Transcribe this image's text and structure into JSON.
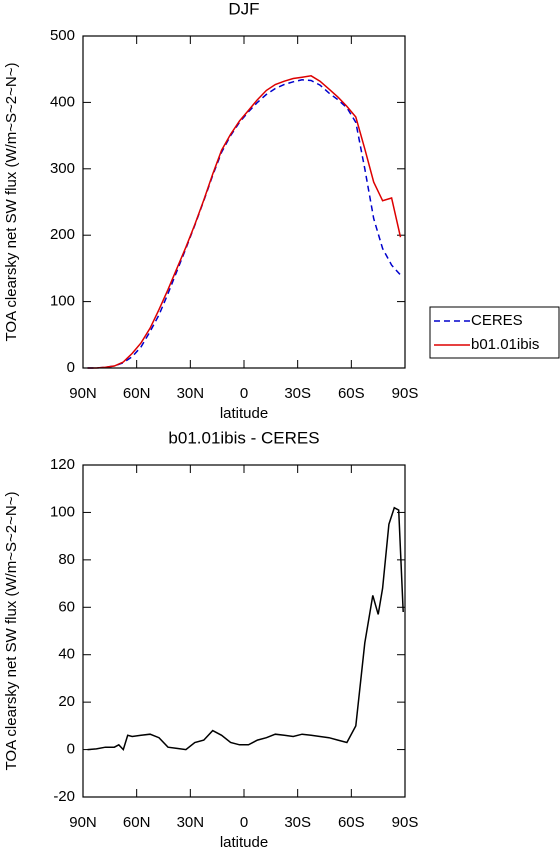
{
  "chart_data": [
    {
      "type": "line",
      "title": "DJF",
      "xlabel": "latitude",
      "ylabel": "TOA clearsky net SW flux (W/m~S~2~N~)",
      "x": [
        87.5,
        82.5,
        77.5,
        72.5,
        67.5,
        62.5,
        57.5,
        52.5,
        47.5,
        42.5,
        37.5,
        32.5,
        27.5,
        22.5,
        17.5,
        12.5,
        7.5,
        2.5,
        -2.5,
        -7.5,
        -12.5,
        -17.5,
        -22.5,
        -27.5,
        -32.5,
        -37.5,
        -42.5,
        -47.5,
        -52.5,
        -57.5,
        -62.5,
        -67.5,
        -72.5,
        -77.5,
        -82.5,
        -87.5
      ],
      "series": [
        {
          "name": "CERES",
          "color": "#0000cc",
          "linestyle": "dashed",
          "values": [
            0,
            0,
            1,
            3,
            8,
            17,
            32,
            55,
            80,
            112,
            146,
            180,
            215,
            252,
            290,
            325,
            350,
            370,
            386,
            400,
            412,
            421,
            427,
            431,
            434,
            433,
            426,
            414,
            404,
            392,
            370,
            300,
            225,
            180,
            155,
            140
          ]
        },
        {
          "name": "b01.01ibis",
          "color": "#dd0000",
          "linestyle": "solid",
          "values": [
            0,
            0,
            1,
            3,
            9,
            22,
            38,
            60,
            88,
            118,
            150,
            182,
            216,
            253,
            292,
            328,
            352,
            372,
            388,
            404,
            418,
            427,
            432,
            436,
            438,
            440,
            432,
            420,
            408,
            394,
            378,
            330,
            280,
            252,
            256,
            197
          ]
        }
      ],
      "xlim": [
        90,
        -90
      ],
      "xticks": [
        {
          "value": 90,
          "label": "90N"
        },
        {
          "value": 60,
          "label": "60N"
        },
        {
          "value": 30,
          "label": "30N"
        },
        0,
        {
          "value": -30,
          "label": "30S"
        },
        {
          "value": -60,
          "label": "60S"
        },
        {
          "value": -90,
          "label": "90S"
        }
      ],
      "ylim": [
        0,
        500
      ],
      "yticks": [
        0,
        100,
        200,
        300,
        400,
        500
      ],
      "legend": "right"
    },
    {
      "type": "line",
      "title": "b01.01ibis - CERES",
      "xlabel": "latitude",
      "ylabel": "TOA clearsky net SW flux (W/m~S~2~N~)",
      "x": [
        87.5,
        82.5,
        77.5,
        72.5,
        70,
        67.5,
        65,
        62.5,
        57.5,
        52.5,
        47.5,
        42.5,
        37.5,
        32.5,
        27.5,
        22.5,
        17.5,
        12.5,
        7.5,
        2.5,
        -2.5,
        -7.5,
        -12.5,
        -17.5,
        -22.5,
        -27.5,
        -32.5,
        -37.5,
        -42.5,
        -47.5,
        -52.5,
        -57.5,
        -62.5,
        -67.5,
        -72,
        -75,
        -77.5,
        -81,
        -84,
        -86.5,
        -89
      ],
      "values": [
        0,
        0.3,
        1,
        1,
        2,
        0,
        6,
        5.5,
        6,
        6.5,
        5,
        1,
        0.5,
        0,
        3,
        4,
        8,
        6,
        3,
        2,
        2,
        4,
        5,
        6.5,
        6,
        5.5,
        6.5,
        6,
        5.5,
        5,
        4,
        3,
        10,
        45,
        65,
        57,
        68,
        95,
        102,
        101,
        58
      ],
      "color": "#000000",
      "xlim": [
        90,
        -90
      ],
      "xticks": [
        {
          "value": 90,
          "label": "90N"
        },
        {
          "value": 60,
          "label": "60N"
        },
        {
          "value": 30,
          "label": "30N"
        },
        0,
        {
          "value": -30,
          "label": "30S"
        },
        {
          "value": -60,
          "label": "60S"
        },
        {
          "value": -90,
          "label": "90S"
        }
      ],
      "ylim": [
        -20,
        120
      ],
      "yticks": [
        -20,
        0,
        20,
        40,
        60,
        80,
        100,
        120
      ]
    }
  ]
}
